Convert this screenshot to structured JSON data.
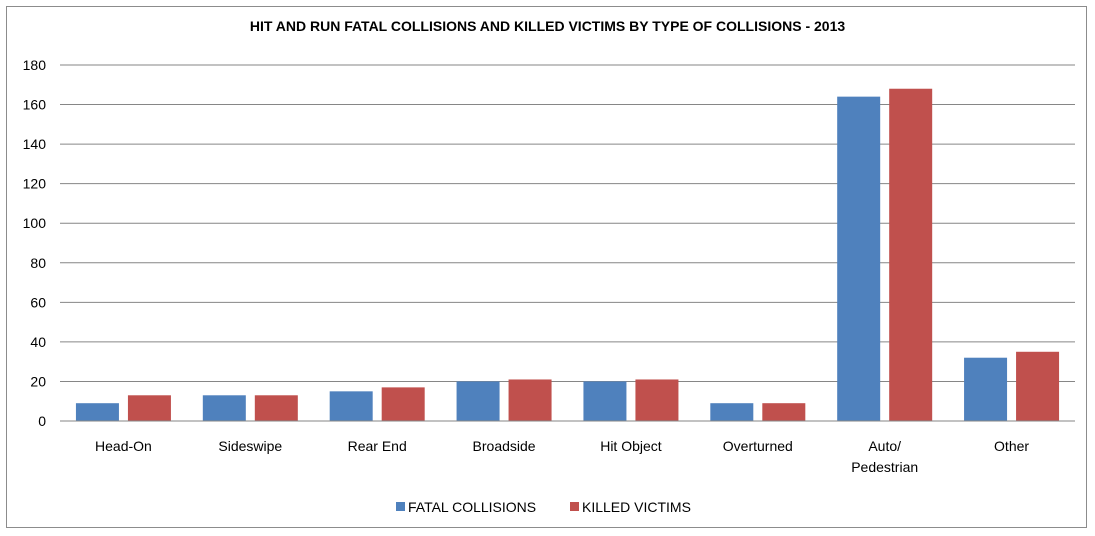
{
  "chart_data": {
    "type": "bar",
    "title": "HIT AND RUN FATAL COLLISIONS AND KILLED VICTIMS BY TYPE OF COLLISIONS - 2013",
    "xlabel": "",
    "ylabel": "",
    "ylim": [
      0,
      180
    ],
    "yticks": [
      "0",
      "20",
      "40",
      "60",
      "80",
      "100",
      "120",
      "140",
      "160",
      "180"
    ],
    "categories": [
      [
        "Head-On"
      ],
      [
        "Sideswipe"
      ],
      [
        "Rear End"
      ],
      [
        "Broadside"
      ],
      [
        "Hit Object"
      ],
      [
        "Overturned"
      ],
      [
        "Auto/",
        "Pedestrian"
      ],
      [
        "Other"
      ]
    ],
    "series": [
      {
        "name": "FATAL COLLISIONS",
        "color": "#4f81bd",
        "values": [
          9,
          13,
          15,
          20,
          20,
          9,
          164,
          32
        ]
      },
      {
        "name": "KILLED VICTIMS",
        "color": "#c0504d",
        "values": [
          13,
          13,
          17,
          21,
          21,
          9,
          168,
          35
        ]
      }
    ],
    "grid": true,
    "legend": "bottom"
  }
}
